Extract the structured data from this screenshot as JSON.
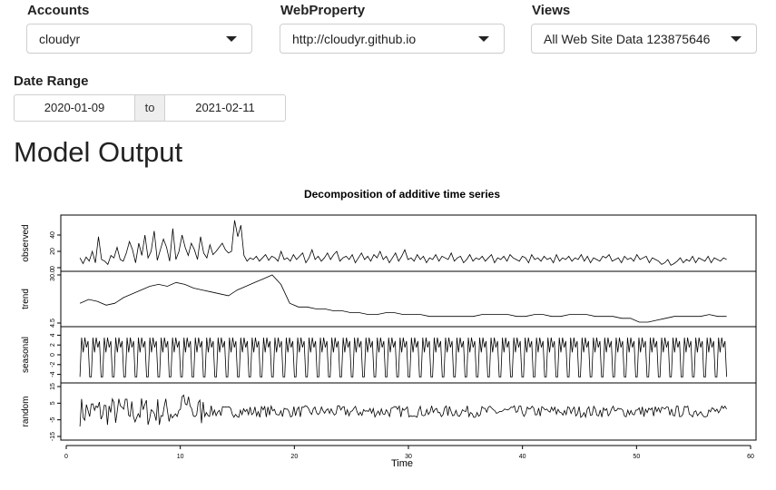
{
  "controls": {
    "accounts": {
      "label": "Accounts",
      "value": "cloudyr"
    },
    "webproperty": {
      "label": "WebProperty",
      "value": "http://cloudyr.github.io"
    },
    "views": {
      "label": "Views",
      "value": "All Web Site Data 123875646"
    },
    "date_range": {
      "label": "Date Range",
      "start": "2020-01-09",
      "separator": "to",
      "end": "2021-02-11"
    }
  },
  "main": {
    "title": "Model Output"
  },
  "chart_data": {
    "type": "line",
    "title": "Decomposition of additive time series",
    "xlabel": "Time",
    "xlim": [
      0,
      60
    ],
    "x_ticks": [
      "0",
      "10",
      "20",
      "30",
      "40",
      "50",
      "60"
    ],
    "x_range": [
      1.2,
      57.9
    ],
    "panels": [
      {
        "name": "observed",
        "ylim": [
          0,
          60
        ],
        "tick_labels": [
          "0",
          "20",
          "40"
        ],
        "values": [
          12,
          5,
          13,
          8,
          20,
          6,
          38,
          10,
          8,
          4,
          15,
          12,
          25,
          10,
          8,
          18,
          32,
          22,
          6,
          30,
          15,
          40,
          12,
          20,
          45,
          9,
          22,
          35,
          25,
          8,
          48,
          10,
          20,
          40,
          25,
          15,
          30,
          22,
          10,
          38,
          18,
          12,
          28,
          16,
          20,
          25,
          30,
          22,
          18,
          20,
          58,
          38,
          52,
          15,
          8,
          12,
          10,
          14,
          8,
          12,
          16,
          9,
          14,
          12,
          8,
          20,
          10,
          12,
          8,
          16,
          10,
          14,
          18,
          6,
          12,
          22,
          10,
          14,
          8,
          12,
          18,
          10,
          16,
          20,
          8,
          12,
          14,
          10,
          16,
          6,
          12,
          18,
          10,
          14,
          8,
          16,
          12,
          20,
          10,
          14,
          6,
          12,
          18,
          8,
          14,
          22,
          10,
          12,
          8,
          16,
          10,
          14,
          6,
          12,
          10,
          16,
          8,
          14,
          12,
          10,
          18,
          8,
          12,
          14,
          6,
          10,
          16,
          8,
          12,
          10,
          14,
          8,
          12,
          16,
          6,
          12,
          10,
          14,
          8,
          16,
          12,
          10,
          8,
          14,
          12,
          6,
          16,
          10,
          12,
          8,
          14,
          10,
          12,
          6,
          16,
          8,
          12,
          10,
          14,
          8,
          12,
          10,
          16,
          8,
          14,
          6,
          12,
          10,
          8,
          14,
          12,
          16,
          8,
          10,
          12,
          6,
          14,
          10,
          12,
          8,
          16,
          10,
          12,
          14,
          6,
          12,
          10,
          8,
          4,
          6,
          10,
          3,
          5,
          8,
          12,
          6,
          10,
          8,
          14,
          6,
          12,
          10,
          8,
          14,
          6,
          12,
          10,
          8,
          12,
          10
        ]
      },
      {
        "name": "trend",
        "ylim": [
          4.5,
          30
        ],
        "tick_labels": [
          "4.5",
          "30.0"
        ],
        "values": [
          15,
          17,
          16,
          14,
          15,
          18,
          20,
          22,
          24,
          25,
          24,
          26,
          25,
          23,
          22,
          21,
          20,
          19,
          22,
          24,
          26,
          28,
          30,
          25,
          15,
          13,
          13,
          12,
          12,
          11,
          11,
          10,
          10,
          9,
          9,
          10,
          10,
          9,
          9,
          9,
          8,
          8,
          8,
          8,
          8,
          8,
          9,
          9,
          9,
          9,
          8,
          8,
          9,
          9,
          8,
          8,
          9,
          9,
          9,
          8,
          8,
          8,
          7,
          7,
          5,
          5,
          6,
          7,
          8,
          8,
          8,
          8,
          9,
          8,
          8
        ]
      },
      {
        "name": "seasonal",
        "ylim": [
          -5,
          5
        ],
        "tick_labels": [
          "-4",
          "-2",
          "0",
          "2",
          "4"
        ]
      },
      {
        "name": "random",
        "ylim": [
          -15,
          15
        ],
        "tick_labels": [
          "-15",
          "-5",
          "5",
          "15"
        ]
      }
    ]
  }
}
